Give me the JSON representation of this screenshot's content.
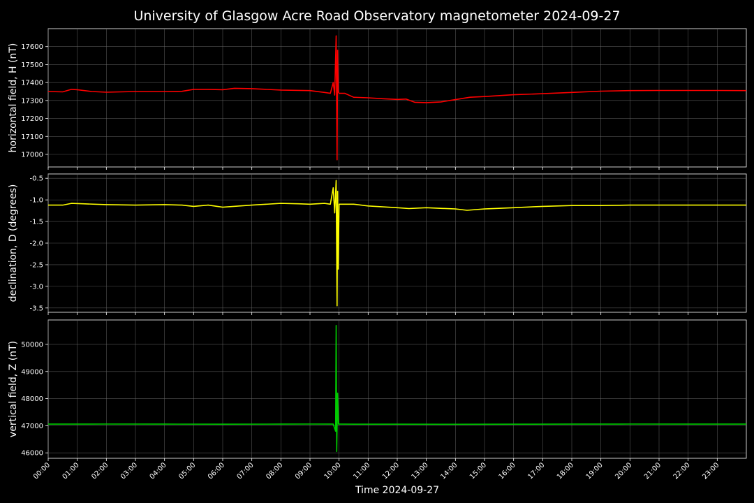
{
  "chart_data": {
    "title": "University of Glasgow Acre Road Observatory magnetometer 2024-09-27",
    "xlabel": "Time 2024-09-27",
    "type": "line",
    "grid": true,
    "x_tick_labels": [
      "00:00",
      "01:00",
      "02:00",
      "03:00",
      "04:00",
      "05:00",
      "06:00",
      "07:00",
      "08:00",
      "09:00",
      "10:00",
      "11:00",
      "12:00",
      "13:00",
      "14:00",
      "15:00",
      "16:00",
      "17:00",
      "18:00",
      "19:00",
      "20:00",
      "21:00",
      "22:00",
      "23:00"
    ],
    "xlim_hours": [
      0,
      24
    ],
    "panels": [
      {
        "ylabel": "horizontal field, H (nT)",
        "color": "#ff0000",
        "ylim": [
          16930,
          17700
        ],
        "yticks": [
          17000,
          17100,
          17200,
          17300,
          17400,
          17500,
          17600
        ],
        "series": [
          {
            "x": [
              0.0,
              0.5,
              0.8,
              1.0,
              1.5,
              2.0,
              3.0,
              4.0,
              4.6,
              5.0,
              5.5,
              6.0,
              6.4,
              7.0,
              8.0,
              9.0,
              9.5,
              9.7,
              9.8,
              9.85,
              9.9,
              9.93,
              9.95,
              9.97,
              10.0,
              10.2,
              10.5,
              11.0,
              11.5,
              12.0,
              12.3,
              12.6,
              13.0,
              13.5,
              14.0,
              14.5,
              15.0,
              16.0,
              17.0,
              18.0,
              19.0,
              20.0,
              21.0,
              22.0,
              23.0,
              24.0
            ],
            "y": [
              17350,
              17348,
              17362,
              17360,
              17350,
              17346,
              17350,
              17350,
              17351,
              17362,
              17362,
              17360,
              17368,
              17366,
              17358,
              17355,
              17345,
              17340,
              17400,
              17330,
              17660,
              16970,
              17580,
              17350,
              17340,
              17340,
              17318,
              17315,
              17310,
              17306,
              17308,
              17290,
              17288,
              17292,
              17305,
              17318,
              17322,
              17332,
              17338,
              17345,
              17352,
              17355,
              17356,
              17356,
              17356,
              17355
            ]
          }
        ]
      },
      {
        "ylabel": "declination, D (degrees)",
        "color": "#ffff00",
        "ylim": [
          -3.6,
          -0.4
        ],
        "yticks": [
          -0.5,
          -1.0,
          -1.5,
          -2.0,
          -2.5,
          -3.0,
          -3.5
        ],
        "series": [
          {
            "x": [
              0.0,
              0.5,
              0.8,
              1.2,
              2.0,
              3.0,
              4.0,
              4.6,
              5.0,
              5.5,
              6.0,
              7.0,
              8.0,
              8.6,
              9.0,
              9.5,
              9.7,
              9.8,
              9.85,
              9.9,
              9.93,
              9.95,
              9.97,
              10.0,
              10.5,
              11.0,
              12.0,
              12.4,
              13.0,
              14.0,
              14.4,
              15.0,
              16.0,
              17.0,
              18.0,
              19.0,
              20.0,
              21.0,
              22.0,
              23.0,
              24.0
            ],
            "y": [
              -1.12,
              -1.12,
              -1.08,
              -1.09,
              -1.11,
              -1.12,
              -1.11,
              -1.12,
              -1.15,
              -1.12,
              -1.17,
              -1.12,
              -1.08,
              -1.09,
              -1.1,
              -1.08,
              -1.1,
              -0.72,
              -1.3,
              -0.55,
              -3.45,
              -0.8,
              -2.6,
              -1.1,
              -1.1,
              -1.14,
              -1.18,
              -1.2,
              -1.18,
              -1.21,
              -1.24,
              -1.21,
              -1.18,
              -1.15,
              -1.13,
              -1.13,
              -1.12,
              -1.12,
              -1.12,
              -1.12,
              -1.12
            ]
          }
        ]
      },
      {
        "ylabel": "vertical field, Z (nT)",
        "color": "#00cc00",
        "ylim": [
          45800,
          50900
        ],
        "yticks": [
          46000,
          47000,
          48000,
          49000,
          50000
        ],
        "series": [
          {
            "x": [
              0.0,
              2.0,
              4.0,
              6.0,
              8.0,
              9.0,
              9.8,
              9.88,
              9.9,
              9.92,
              9.95,
              9.98,
              10.0,
              11.0,
              12.0,
              14.0,
              16.0,
              18.0,
              20.0,
              22.0,
              24.0
            ],
            "y": [
              47060,
              47062,
              47060,
              47058,
              47060,
              47062,
              47060,
              46800,
              50700,
              46050,
              48200,
              47060,
              47060,
              47058,
              47056,
              47054,
              47058,
              47060,
              47062,
              47060,
              47060
            ]
          }
        ]
      }
    ]
  }
}
